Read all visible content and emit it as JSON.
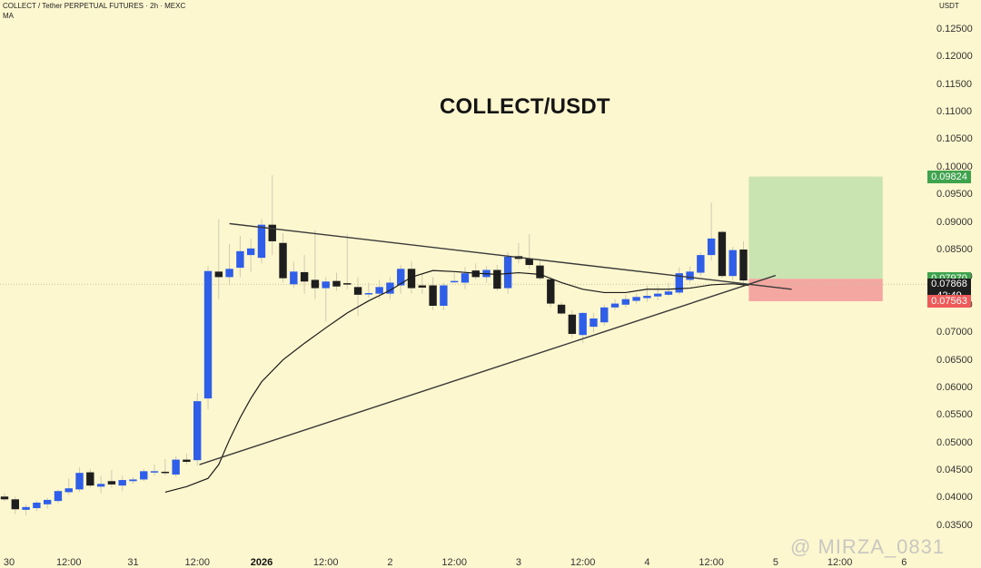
{
  "header": {
    "symbol_line": "COLLECT / Tether PERPETUAL FUTURES · 2h · MEXC",
    "indicator": "MA"
  },
  "title": "COLLECT/USDT",
  "watermark": "@ MIRZA_0831",
  "colors": {
    "background": "#fdf7cf",
    "bull": "#2f5ee8",
    "bear": "#1e1e1e",
    "target_zone": "#c9e4b0",
    "stop_zone": "#f4a6a0",
    "target_badge": "#3fa34d",
    "current_badge": "#1e1e1e",
    "stop_badge": "#ee5a5a"
  },
  "chart_data": {
    "type": "candlestick",
    "title": "COLLECT/USDT",
    "symbol": "COLLECT / Tether PERPETUAL FUTURES · 2h · MEXC",
    "y_unit": "USDT",
    "ylim": [
      0.0335,
      0.1268
    ],
    "y_ticks": [
      "0.12500",
      "0.12000",
      "0.11500",
      "0.11000",
      "0.10500",
      "0.10000",
      "0.09500",
      "0.09000",
      "0.08500",
      "0.08000",
      "0.07500",
      "0.07000",
      "0.06500",
      "0.06000",
      "0.05500",
      "0.05000",
      "0.04500",
      "0.04000",
      "0.03500"
    ],
    "y_tick_values": [
      0.125,
      0.12,
      0.115,
      0.11,
      0.105,
      0.1,
      0.095,
      0.09,
      0.085,
      0.08,
      0.075,
      0.07,
      0.065,
      0.06,
      0.055,
      0.05,
      0.045,
      0.04,
      0.035
    ],
    "x_range": [
      0,
      85
    ],
    "x_ticks": [
      {
        "label": "30",
        "x": 0,
        "bold": false
      },
      {
        "label": "12:00",
        "x": 6,
        "bold": false
      },
      {
        "label": "31",
        "x": 12,
        "bold": false
      },
      {
        "label": "12:00",
        "x": 18,
        "bold": false
      },
      {
        "label": "2026",
        "x": 24,
        "bold": true
      },
      {
        "label": "12:00",
        "x": 30,
        "bold": false
      },
      {
        "label": "2",
        "x": 36,
        "bold": false
      },
      {
        "label": "12:00",
        "x": 42,
        "bold": false
      },
      {
        "label": "3",
        "x": 48,
        "bold": false
      },
      {
        "label": "12:00",
        "x": 54,
        "bold": false
      },
      {
        "label": "4",
        "x": 60,
        "bold": false
      },
      {
        "label": "12:00",
        "x": 66,
        "bold": false
      },
      {
        "label": "5",
        "x": 72,
        "bold": false
      },
      {
        "label": "12:00",
        "x": 78,
        "bold": false
      },
      {
        "label": "6",
        "x": 84,
        "bold": false
      }
    ],
    "candles": [
      {
        "x": 0,
        "o": 0.0402,
        "h": 0.0408,
        "l": 0.0393,
        "c": 0.0397
      },
      {
        "x": 1,
        "o": 0.0397,
        "h": 0.0402,
        "l": 0.037,
        "c": 0.0379
      },
      {
        "x": 2,
        "o": 0.0378,
        "h": 0.0388,
        "l": 0.0368,
        "c": 0.0383
      },
      {
        "x": 3,
        "o": 0.0381,
        "h": 0.0395,
        "l": 0.0376,
        "c": 0.0391
      },
      {
        "x": 4,
        "o": 0.0388,
        "h": 0.04,
        "l": 0.038,
        "c": 0.0396
      },
      {
        "x": 5,
        "o": 0.0394,
        "h": 0.0415,
        "l": 0.039,
        "c": 0.0412
      },
      {
        "x": 6,
        "o": 0.041,
        "h": 0.0435,
        "l": 0.0405,
        "c": 0.0417
      },
      {
        "x": 7,
        "o": 0.0415,
        "h": 0.0455,
        "l": 0.041,
        "c": 0.0445
      },
      {
        "x": 8,
        "o": 0.0446,
        "h": 0.0452,
        "l": 0.0418,
        "c": 0.0422
      },
      {
        "x": 9,
        "o": 0.042,
        "h": 0.044,
        "l": 0.0408,
        "c": 0.0425
      },
      {
        "x": 10,
        "o": 0.043,
        "h": 0.045,
        "l": 0.0418,
        "c": 0.0424
      },
      {
        "x": 11,
        "o": 0.0422,
        "h": 0.044,
        "l": 0.0412,
        "c": 0.0432
      },
      {
        "x": 12,
        "o": 0.043,
        "h": 0.0437,
        "l": 0.0425,
        "c": 0.0433
      },
      {
        "x": 13,
        "o": 0.0433,
        "h": 0.0452,
        "l": 0.043,
        "c": 0.0448
      },
      {
        "x": 14,
        "o": 0.0447,
        "h": 0.046,
        "l": 0.044,
        "c": 0.0448
      },
      {
        "x": 15,
        "o": 0.0447,
        "h": 0.047,
        "l": 0.044,
        "c": 0.0446
      },
      {
        "x": 16,
        "o": 0.0442,
        "h": 0.0475,
        "l": 0.0438,
        "c": 0.0469
      },
      {
        "x": 17,
        "o": 0.0469,
        "h": 0.048,
        "l": 0.046,
        "c": 0.0465
      },
      {
        "x": 18,
        "o": 0.0468,
        "h": 0.059,
        "l": 0.0458,
        "c": 0.0575
      },
      {
        "x": 19,
        "o": 0.058,
        "h": 0.082,
        "l": 0.056,
        "c": 0.0811
      },
      {
        "x": 20,
        "o": 0.081,
        "h": 0.0905,
        "l": 0.076,
        "c": 0.08
      },
      {
        "x": 21,
        "o": 0.08,
        "h": 0.086,
        "l": 0.0785,
        "c": 0.0815
      },
      {
        "x": 22,
        "o": 0.0817,
        "h": 0.0875,
        "l": 0.08,
        "c": 0.0847
      },
      {
        "x": 23,
        "o": 0.084,
        "h": 0.087,
        "l": 0.081,
        "c": 0.0852
      },
      {
        "x": 24,
        "o": 0.0835,
        "h": 0.0905,
        "l": 0.0825,
        "c": 0.0895
      },
      {
        "x": 25,
        "o": 0.0895,
        "h": 0.0985,
        "l": 0.084,
        "c": 0.0865
      },
      {
        "x": 26,
        "o": 0.0862,
        "h": 0.088,
        "l": 0.079,
        "c": 0.0798
      },
      {
        "x": 27,
        "o": 0.0787,
        "h": 0.0828,
        "l": 0.078,
        "c": 0.081
      },
      {
        "x": 28,
        "o": 0.0809,
        "h": 0.084,
        "l": 0.077,
        "c": 0.0792
      },
      {
        "x": 29,
        "o": 0.0795,
        "h": 0.0885,
        "l": 0.076,
        "c": 0.078
      },
      {
        "x": 30,
        "o": 0.078,
        "h": 0.08,
        "l": 0.072,
        "c": 0.0792
      },
      {
        "x": 31,
        "o": 0.0793,
        "h": 0.0808,
        "l": 0.0775,
        "c": 0.0783
      },
      {
        "x": 32,
        "o": 0.0789,
        "h": 0.0878,
        "l": 0.0778,
        "c": 0.0787
      },
      {
        "x": 33,
        "o": 0.0782,
        "h": 0.08,
        "l": 0.073,
        "c": 0.0768
      },
      {
        "x": 34,
        "o": 0.077,
        "h": 0.079,
        "l": 0.0762,
        "c": 0.0771
      },
      {
        "x": 35,
        "o": 0.077,
        "h": 0.0795,
        "l": 0.076,
        "c": 0.0782
      },
      {
        "x": 36,
        "o": 0.077,
        "h": 0.08,
        "l": 0.076,
        "c": 0.079
      },
      {
        "x": 37,
        "o": 0.0785,
        "h": 0.0822,
        "l": 0.077,
        "c": 0.0815
      },
      {
        "x": 38,
        "o": 0.0815,
        "h": 0.0829,
        "l": 0.077,
        "c": 0.078
      },
      {
        "x": 39,
        "o": 0.0785,
        "h": 0.0805,
        "l": 0.077,
        "c": 0.0781
      },
      {
        "x": 40,
        "o": 0.0785,
        "h": 0.08,
        "l": 0.074,
        "c": 0.0748
      },
      {
        "x": 41,
        "o": 0.0748,
        "h": 0.079,
        "l": 0.074,
        "c": 0.0785
      },
      {
        "x": 42,
        "o": 0.0793,
        "h": 0.0808,
        "l": 0.079,
        "c": 0.0793
      },
      {
        "x": 43,
        "o": 0.079,
        "h": 0.0818,
        "l": 0.0778,
        "c": 0.0807
      },
      {
        "x": 44,
        "o": 0.0812,
        "h": 0.0825,
        "l": 0.0795,
        "c": 0.08
      },
      {
        "x": 45,
        "o": 0.08,
        "h": 0.082,
        "l": 0.079,
        "c": 0.0813
      },
      {
        "x": 46,
        "o": 0.0813,
        "h": 0.0822,
        "l": 0.0775,
        "c": 0.0779
      },
      {
        "x": 47,
        "o": 0.078,
        "h": 0.0845,
        "l": 0.077,
        "c": 0.0837
      },
      {
        "x": 48,
        "o": 0.0838,
        "h": 0.0862,
        "l": 0.0825,
        "c": 0.0833
      },
      {
        "x": 49,
        "o": 0.0833,
        "h": 0.0878,
        "l": 0.0815,
        "c": 0.0822
      },
      {
        "x": 50,
        "o": 0.0821,
        "h": 0.083,
        "l": 0.0795,
        "c": 0.0798
      },
      {
        "x": 51,
        "o": 0.0796,
        "h": 0.08,
        "l": 0.0745,
        "c": 0.0752
      },
      {
        "x": 52,
        "o": 0.075,
        "h": 0.0755,
        "l": 0.0732,
        "c": 0.0734
      },
      {
        "x": 53,
        "o": 0.0732,
        "h": 0.074,
        "l": 0.069,
        "c": 0.0697
      },
      {
        "x": 54,
        "o": 0.0695,
        "h": 0.0737,
        "l": 0.068,
        "c": 0.0735
      },
      {
        "x": 55,
        "o": 0.071,
        "h": 0.0735,
        "l": 0.07,
        "c": 0.0725
      },
      {
        "x": 56,
        "o": 0.0718,
        "h": 0.075,
        "l": 0.0712,
        "c": 0.0745
      },
      {
        "x": 57,
        "o": 0.0745,
        "h": 0.076,
        "l": 0.074,
        "c": 0.0752
      },
      {
        "x": 58,
        "o": 0.075,
        "h": 0.0768,
        "l": 0.0745,
        "c": 0.076
      },
      {
        "x": 59,
        "o": 0.0757,
        "h": 0.077,
        "l": 0.0752,
        "c": 0.0764
      },
      {
        "x": 60,
        "o": 0.0762,
        "h": 0.0785,
        "l": 0.0755,
        "c": 0.0766
      },
      {
        "x": 61,
        "o": 0.0765,
        "h": 0.0785,
        "l": 0.0758,
        "c": 0.077
      },
      {
        "x": 62,
        "o": 0.0768,
        "h": 0.079,
        "l": 0.0765,
        "c": 0.0774
      },
      {
        "x": 63,
        "o": 0.0772,
        "h": 0.0818,
        "l": 0.0768,
        "c": 0.0807
      },
      {
        "x": 64,
        "o": 0.0795,
        "h": 0.082,
        "l": 0.079,
        "c": 0.081
      },
      {
        "x": 65,
        "o": 0.0808,
        "h": 0.0845,
        "l": 0.0802,
        "c": 0.084
      },
      {
        "x": 66,
        "o": 0.084,
        "h": 0.0935,
        "l": 0.083,
        "c": 0.087
      },
      {
        "x": 67,
        "o": 0.0882,
        "h": 0.0885,
        "l": 0.0798,
        "c": 0.0802
      },
      {
        "x": 68,
        "o": 0.0802,
        "h": 0.0855,
        "l": 0.0795,
        "c": 0.0849
      },
      {
        "x": 69,
        "o": 0.085,
        "h": 0.0865,
        "l": 0.0785,
        "c": 0.0794
      }
    ],
    "ma_line": [
      {
        "x": 15,
        "y": 0.041
      },
      {
        "x": 17,
        "y": 0.042
      },
      {
        "x": 19,
        "y": 0.0435
      },
      {
        "x": 20,
        "y": 0.046
      },
      {
        "x": 21,
        "y": 0.0505
      },
      {
        "x": 22,
        "y": 0.0545
      },
      {
        "x": 23,
        "y": 0.058
      },
      {
        "x": 24,
        "y": 0.061
      },
      {
        "x": 26,
        "y": 0.065
      },
      {
        "x": 28,
        "y": 0.068
      },
      {
        "x": 30,
        "y": 0.0708
      },
      {
        "x": 32,
        "y": 0.0735
      },
      {
        "x": 34,
        "y": 0.0757
      },
      {
        "x": 36,
        "y": 0.0776
      },
      {
        "x": 38,
        "y": 0.08
      },
      {
        "x": 40,
        "y": 0.0812
      },
      {
        "x": 42,
        "y": 0.081
      },
      {
        "x": 44,
        "y": 0.0807
      },
      {
        "x": 46,
        "y": 0.0805
      },
      {
        "x": 48,
        "y": 0.0808
      },
      {
        "x": 50,
        "y": 0.0805
      },
      {
        "x": 52,
        "y": 0.079
      },
      {
        "x": 54,
        "y": 0.0778
      },
      {
        "x": 56,
        "y": 0.0772
      },
      {
        "x": 58,
        "y": 0.0772
      },
      {
        "x": 60,
        "y": 0.0778
      },
      {
        "x": 62,
        "y": 0.0778
      },
      {
        "x": 64,
        "y": 0.078
      },
      {
        "x": 66,
        "y": 0.0786
      },
      {
        "x": 68,
        "y": 0.0788
      },
      {
        "x": 69.5,
        "y": 0.0785
      }
    ],
    "trendlines": [
      {
        "name": "upper-resistance",
        "x1": 21,
        "y1": 0.0897,
        "x2": 73.5,
        "y2": 0.0778
      },
      {
        "name": "lower-support",
        "x1": 18.2,
        "y1": 0.046,
        "x2": 72,
        "y2": 0.0803
      }
    ],
    "position": {
      "x_start": 69.5,
      "x_end": 82,
      "target": 0.09824,
      "entry": 0.0797,
      "stop": 0.07563
    },
    "price_labels": [
      {
        "name": "target",
        "value": 0.09824,
        "text": "0.09824"
      },
      {
        "name": "entry",
        "value": 0.0797,
        "text": "0.07970"
      },
      {
        "name": "current",
        "value": 0.07868,
        "text": "0.07868",
        "countdown": "42:49"
      },
      {
        "name": "stop",
        "value": 0.07563,
        "text": "0.07563"
      }
    ]
  }
}
